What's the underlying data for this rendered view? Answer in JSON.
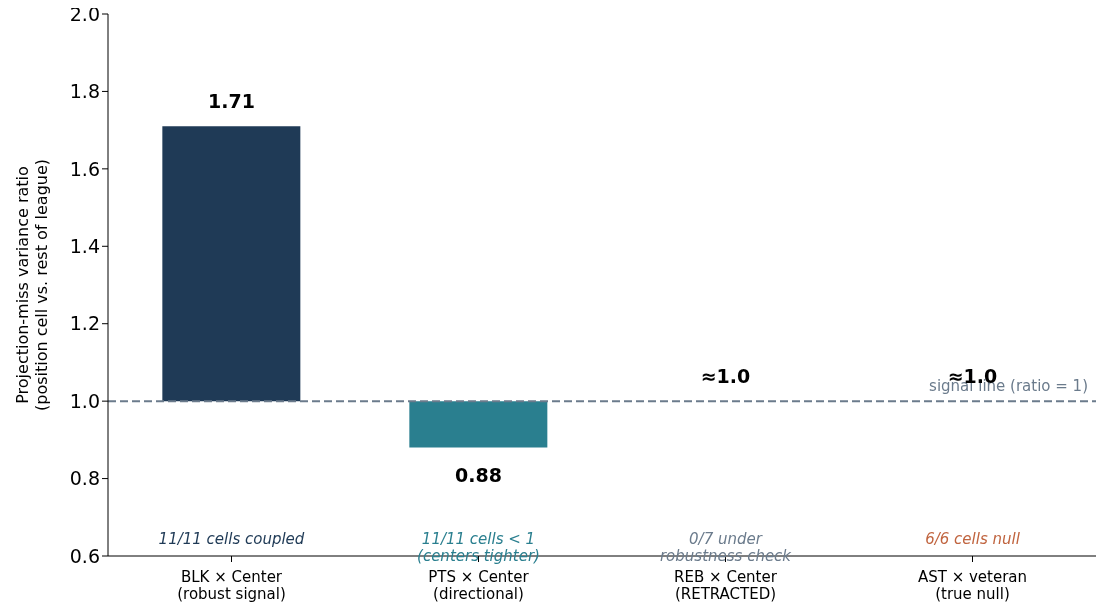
{
  "chart_data": {
    "type": "bar",
    "ylabel": "Projection-miss variance ratio\n(position cell vs. rest of league)",
    "categories": [
      "BLK × Center\n(robust signal)",
      "PTS × Center\n(directional)",
      "REB × Center\n(RETRACTED)",
      "AST × veteran\n(true null)"
    ],
    "base": [
      1,
      1,
      null,
      null
    ],
    "values": [
      0.71,
      -0.12,
      null,
      null
    ],
    "colors": [
      "#1f3a56",
      "#2a7f8f",
      "#6b7b8c",
      "#c0643f"
    ],
    "value_labels": [
      "1.71",
      "0.88",
      "≈1.0",
      "≈1.0"
    ],
    "ylim": [
      0.6,
      2.0
    ],
    "yticks": [
      0.6,
      0.8,
      {
        "value": 1,
        "label": "1.0"
      },
      1.2,
      1.4,
      1.6,
      1.8,
      {
        "value": 2,
        "label": "2.0"
      }
    ],
    "ref_lines": [
      {
        "axis": "y",
        "value": 1,
        "label": "signal line (ratio = 1)",
        "color": "#6b7b8c",
        "line_style": "dashed"
      }
    ],
    "annotations": [
      "11/11 cells coupled",
      "11/11 cells < 1\n(centers tighter)",
      "0/7 under\nrobustness check",
      "6/6 cells null"
    ],
    "grid": false,
    "legend": false
  }
}
